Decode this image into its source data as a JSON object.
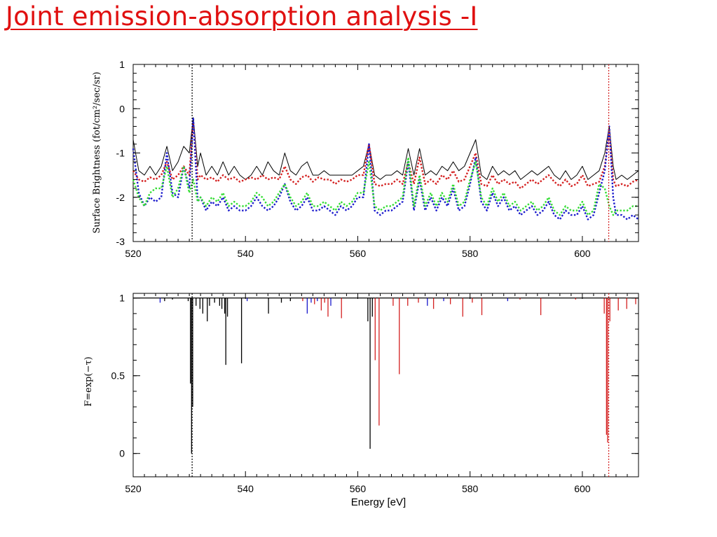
{
  "slide": {
    "title": "Joint emission-absorption analysis -I"
  },
  "colors": {
    "title": "#e01010",
    "black": "#000000",
    "red": "#d42020",
    "blue": "#1a1acc",
    "green": "#33dd33"
  },
  "chart_data": [
    {
      "type": "line",
      "title": "",
      "xlabel": "",
      "ylabel": "Surface Brightness (fot/cm²/sec/sr)",
      "xlim": [
        520,
        610
      ],
      "ylim": [
        -3,
        1
      ],
      "xticks": [
        "520",
        "540",
        "560",
        "580",
        "600"
      ],
      "yticks": [
        "1",
        "0",
        "-1",
        "-2",
        "-3"
      ],
      "vlines": [
        {
          "x": 530.5,
          "color": "black",
          "style": "dotted"
        },
        {
          "x": 604.7,
          "color": "red",
          "style": "dotted"
        }
      ],
      "x": [
        520,
        521,
        522,
        523,
        524,
        525,
        526,
        527,
        528,
        529,
        530,
        530.7,
        531.5,
        532,
        533,
        534,
        535,
        536,
        537,
        538,
        539,
        540,
        541,
        542,
        543,
        544,
        545,
        546,
        547,
        548,
        549,
        550,
        551,
        552,
        553,
        554,
        555,
        556,
        557,
        558,
        559,
        560,
        561,
        562,
        563,
        564,
        565,
        566,
        567,
        568,
        569,
        570,
        571,
        572,
        573,
        574,
        575,
        576,
        577,
        578,
        579,
        580,
        581,
        582,
        583,
        584,
        585,
        586,
        587,
        588,
        589,
        590,
        591,
        592,
        593,
        594,
        595,
        596,
        597,
        598,
        599,
        600,
        601,
        602,
        603,
        604,
        604.8,
        605.5,
        606,
        607,
        608,
        609,
        610
      ],
      "series": [
        {
          "color": "black",
          "style": "solid",
          "values": [
            -0.7,
            -1.4,
            -1.5,
            -1.3,
            -1.5,
            -1.3,
            -0.85,
            -1.4,
            -1.2,
            -0.85,
            -1.0,
            -0.2,
            -1.3,
            -1.0,
            -1.5,
            -1.3,
            -1.5,
            -1.2,
            -1.5,
            -1.3,
            -1.5,
            -1.6,
            -1.5,
            -1.3,
            -1.5,
            -1.2,
            -1.4,
            -1.5,
            -1.0,
            -1.4,
            -1.5,
            -1.3,
            -1.2,
            -1.5,
            -1.5,
            -1.4,
            -1.5,
            -1.5,
            -1.5,
            -1.5,
            -1.5,
            -1.4,
            -1.3,
            -0.8,
            -1.5,
            -1.6,
            -1.5,
            -1.5,
            -1.4,
            -1.5,
            -0.9,
            -1.5,
            -0.9,
            -1.5,
            -1.4,
            -1.5,
            -1.3,
            -1.4,
            -1.2,
            -1.4,
            -1.3,
            -1.0,
            -0.7,
            -1.5,
            -1.6,
            -1.3,
            -1.5,
            -1.4,
            -1.5,
            -1.4,
            -1.6,
            -1.5,
            -1.4,
            -1.5,
            -1.4,
            -1.3,
            -1.5,
            -1.6,
            -1.4,
            -1.6,
            -1.5,
            -1.3,
            -1.6,
            -1.5,
            -1.4,
            -1.0,
            -0.4,
            -1.3,
            -1.6,
            -1.5,
            -1.6,
            -1.5,
            -1.4
          ]
        },
        {
          "color": "red",
          "style": "dotted",
          "values": [
            -1.4,
            -1.6,
            -1.65,
            -1.55,
            -1.6,
            -1.5,
            -1.2,
            -1.6,
            -1.5,
            -1.3,
            -1.5,
            -0.3,
            -1.6,
            -1.5,
            -1.6,
            -1.55,
            -1.65,
            -1.5,
            -1.6,
            -1.55,
            -1.65,
            -1.6,
            -1.55,
            -1.6,
            -1.5,
            -1.6,
            -1.55,
            -1.6,
            -1.3,
            -1.6,
            -1.7,
            -1.55,
            -1.5,
            -1.65,
            -1.55,
            -1.6,
            -1.6,
            -1.7,
            -1.6,
            -1.65,
            -1.6,
            -1.5,
            -1.5,
            -0.8,
            -1.7,
            -1.75,
            -1.7,
            -1.7,
            -1.6,
            -1.7,
            -1.2,
            -1.7,
            -1.1,
            -1.7,
            -1.6,
            -1.7,
            -1.5,
            -1.6,
            -1.4,
            -1.65,
            -1.6,
            -1.3,
            -1.0,
            -1.7,
            -1.75,
            -1.5,
            -1.7,
            -1.6,
            -1.7,
            -1.65,
            -1.8,
            -1.7,
            -1.6,
            -1.7,
            -1.6,
            -1.5,
            -1.65,
            -1.75,
            -1.6,
            -1.75,
            -1.7,
            -1.5,
            -1.75,
            -1.7,
            -1.65,
            -1.3,
            -0.5,
            -1.6,
            -1.75,
            -1.7,
            -1.75,
            -1.65,
            -1.6
          ]
        },
        {
          "color": "blue",
          "style": "dotted",
          "values": [
            -0.9,
            -1.9,
            -2.2,
            -2.0,
            -2.1,
            -2.0,
            -1.0,
            -1.9,
            -2.0,
            -1.3,
            -1.8,
            -0.2,
            -2.1,
            -2.0,
            -2.3,
            -2.1,
            -2.2,
            -2.0,
            -2.3,
            -2.2,
            -2.3,
            -2.3,
            -2.2,
            -2.0,
            -2.2,
            -2.3,
            -2.2,
            -2.0,
            -1.7,
            -2.1,
            -2.3,
            -2.2,
            -2.0,
            -2.3,
            -2.3,
            -2.2,
            -2.3,
            -2.4,
            -2.2,
            -2.3,
            -2.2,
            -2.0,
            -2.0,
            -0.8,
            -2.3,
            -2.4,
            -2.3,
            -2.3,
            -2.2,
            -2.1,
            -1.2,
            -2.3,
            -1.6,
            -2.3,
            -2.0,
            -2.3,
            -2.0,
            -2.2,
            -1.8,
            -2.3,
            -2.2,
            -1.7,
            -1.1,
            -2.1,
            -2.3,
            -1.9,
            -2.2,
            -2.0,
            -2.3,
            -2.2,
            -2.4,
            -2.3,
            -2.2,
            -2.4,
            -2.3,
            -2.1,
            -2.4,
            -2.5,
            -2.3,
            -2.4,
            -2.4,
            -2.2,
            -2.5,
            -2.4,
            -1.9,
            -1.4,
            -0.4,
            -2.0,
            -2.4,
            -2.4,
            -2.5,
            -2.4,
            -2.5
          ]
        },
        {
          "color": "green",
          "style": "dotted",
          "values": [
            -1.6,
            -2.0,
            -2.2,
            -1.9,
            -1.8,
            -1.8,
            -1.3,
            -2.0,
            -1.8,
            -1.3,
            -1.9,
            -1.6,
            -2.1,
            -2.0,
            -2.2,
            -2.0,
            -2.1,
            -1.9,
            -2.2,
            -2.1,
            -2.2,
            -2.2,
            -2.1,
            -1.9,
            -2.0,
            -2.2,
            -2.1,
            -1.9,
            -1.7,
            -2.0,
            -2.2,
            -2.1,
            -1.9,
            -2.2,
            -2.2,
            -2.1,
            -2.2,
            -2.3,
            -2.1,
            -2.2,
            -2.1,
            -1.9,
            -1.9,
            -1.2,
            -2.2,
            -2.3,
            -2.2,
            -2.2,
            -2.1,
            -2.0,
            -1.1,
            -2.2,
            -1.5,
            -2.2,
            -1.9,
            -2.2,
            -1.9,
            -2.1,
            -1.7,
            -2.2,
            -2.1,
            -1.6,
            -1.2,
            -2.0,
            -2.2,
            -1.8,
            -2.1,
            -1.9,
            -2.2,
            -2.1,
            -2.3,
            -2.2,
            -2.1,
            -2.3,
            -2.2,
            -2.0,
            -2.3,
            -2.4,
            -2.2,
            -2.3,
            -2.3,
            -2.1,
            -2.4,
            -2.3,
            -1.7,
            -1.8,
            -2.2,
            -2.4,
            -2.3,
            -2.3,
            -2.3,
            -2.2,
            -2.2
          ]
        }
      ]
    },
    {
      "type": "bar",
      "title": "",
      "xlabel": "Energy [eV]",
      "ylabel": "F=exp(−τ)",
      "xlim": [
        520,
        610
      ],
      "ylim": [
        -0.15,
        1.03
      ],
      "xticks": [
        "520",
        "540",
        "560",
        "580",
        "600"
      ],
      "yticks": [
        "1",
        "0.5",
        "0"
      ],
      "baseline": 1,
      "vlines": [
        {
          "x": 530.5,
          "color": "black",
          "style": "dotted"
        },
        {
          "x": 604.7,
          "color": "red",
          "style": "dotted"
        }
      ],
      "lines": [
        {
          "x": 524.8,
          "v": 0.97,
          "c": "blue"
        },
        {
          "x": 525.6,
          "v": 0.98,
          "c": "black"
        },
        {
          "x": 527.0,
          "v": 0.99,
          "c": "black"
        },
        {
          "x": 529.8,
          "v": 0.98,
          "c": "black"
        },
        {
          "x": 530.2,
          "v": 0.45,
          "c": "black"
        },
        {
          "x": 530.4,
          "v": 0.0,
          "c": "black"
        },
        {
          "x": 530.6,
          "v": 0.3,
          "c": "black"
        },
        {
          "x": 531.2,
          "v": 0.95,
          "c": "black"
        },
        {
          "x": 531.9,
          "v": 0.93,
          "c": "black"
        },
        {
          "x": 532.4,
          "v": 0.9,
          "c": "black"
        },
        {
          "x": 533.2,
          "v": 0.85,
          "c": "black"
        },
        {
          "x": 533.6,
          "v": 0.95,
          "c": "black"
        },
        {
          "x": 534.5,
          "v": 0.97,
          "c": "black"
        },
        {
          "x": 535.4,
          "v": 0.95,
          "c": "black"
        },
        {
          "x": 535.8,
          "v": 0.93,
          "c": "black"
        },
        {
          "x": 536.3,
          "v": 0.9,
          "c": "black"
        },
        {
          "x": 536.5,
          "v": 0.57,
          "c": "black"
        },
        {
          "x": 536.8,
          "v": 0.88,
          "c": "black"
        },
        {
          "x": 539.3,
          "v": 0.58,
          "c": "black"
        },
        {
          "x": 540.3,
          "v": 0.98,
          "c": "blue"
        },
        {
          "x": 544.1,
          "v": 0.9,
          "c": "black"
        },
        {
          "x": 546.4,
          "v": 0.97,
          "c": "black"
        },
        {
          "x": 548.0,
          "v": 0.98,
          "c": "black"
        },
        {
          "x": 550.2,
          "v": 0.98,
          "c": "red"
        },
        {
          "x": 551.0,
          "v": 0.9,
          "c": "blue"
        },
        {
          "x": 551.7,
          "v": 0.97,
          "c": "blue"
        },
        {
          "x": 552.3,
          "v": 0.96,
          "c": "red"
        },
        {
          "x": 552.8,
          "v": 0.98,
          "c": "blue"
        },
        {
          "x": 553.5,
          "v": 0.92,
          "c": "red"
        },
        {
          "x": 554.1,
          "v": 0.97,
          "c": "red"
        },
        {
          "x": 554.7,
          "v": 0.88,
          "c": "red"
        },
        {
          "x": 555.2,
          "v": 0.95,
          "c": "blue"
        },
        {
          "x": 557.1,
          "v": 0.87,
          "c": "red"
        },
        {
          "x": 561.8,
          "v": 0.85,
          "c": "black"
        },
        {
          "x": 562.2,
          "v": 0.03,
          "c": "black"
        },
        {
          "x": 562.6,
          "v": 0.88,
          "c": "black"
        },
        {
          "x": 563.1,
          "v": 0.6,
          "c": "red"
        },
        {
          "x": 563.8,
          "v": 0.18,
          "c": "red"
        },
        {
          "x": 566.3,
          "v": 0.95,
          "c": "red"
        },
        {
          "x": 567.4,
          "v": 0.51,
          "c": "red"
        },
        {
          "x": 568.9,
          "v": 0.95,
          "c": "red"
        },
        {
          "x": 570.8,
          "v": 0.97,
          "c": "red"
        },
        {
          "x": 572.4,
          "v": 0.95,
          "c": "blue"
        },
        {
          "x": 573.5,
          "v": 0.93,
          "c": "red"
        },
        {
          "x": 575.3,
          "v": 0.98,
          "c": "blue"
        },
        {
          "x": 576.5,
          "v": 0.96,
          "c": "red"
        },
        {
          "x": 578.7,
          "v": 0.88,
          "c": "red"
        },
        {
          "x": 580.4,
          "v": 0.97,
          "c": "red"
        },
        {
          "x": 582.1,
          "v": 0.89,
          "c": "red"
        },
        {
          "x": 586.7,
          "v": 0.98,
          "c": "blue"
        },
        {
          "x": 588.9,
          "v": 0.99,
          "c": "red"
        },
        {
          "x": 592.6,
          "v": 0.89,
          "c": "red"
        },
        {
          "x": 598.8,
          "v": 0.99,
          "c": "red"
        },
        {
          "x": 603.9,
          "v": 0.9,
          "c": "red"
        },
        {
          "x": 604.3,
          "v": 0.12,
          "c": "red"
        },
        {
          "x": 604.5,
          "v": 0.07,
          "c": "red"
        },
        {
          "x": 604.9,
          "v": 0.85,
          "c": "red"
        },
        {
          "x": 606.4,
          "v": 0.92,
          "c": "red"
        },
        {
          "x": 607.9,
          "v": 0.93,
          "c": "red"
        },
        {
          "x": 609.5,
          "v": 0.96,
          "c": "red"
        }
      ]
    }
  ]
}
